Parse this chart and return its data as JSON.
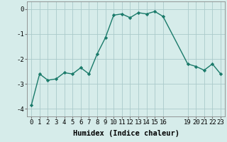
{
  "x": [
    0,
    1,
    2,
    3,
    4,
    5,
    6,
    7,
    8,
    9,
    10,
    11,
    12,
    13,
    14,
    15,
    16,
    19,
    20,
    21,
    22,
    23
  ],
  "y": [
    -3.85,
    -2.6,
    -2.85,
    -2.8,
    -2.55,
    -2.6,
    -2.35,
    -2.6,
    -1.8,
    -1.15,
    -0.25,
    -0.2,
    -0.35,
    -0.15,
    -0.2,
    -0.1,
    -0.3,
    -2.2,
    -2.3,
    -2.45,
    -2.2,
    -2.6
  ],
  "title": "",
  "xlabel": "Humidex (Indice chaleur)",
  "ylabel": "",
  "xlim": [
    -0.5,
    23.5
  ],
  "ylim": [
    -4.3,
    0.3
  ],
  "xticks": [
    0,
    1,
    2,
    3,
    4,
    5,
    6,
    7,
    8,
    9,
    10,
    11,
    12,
    13,
    14,
    15,
    16,
    19,
    20,
    21,
    22,
    23
  ],
  "yticks": [
    0,
    -1,
    -2,
    -3,
    -4
  ],
  "line_color": "#1a7a6a",
  "marker": "D",
  "marker_size": 2.2,
  "bg_color": "#d6ecea",
  "grid_color": "#aacaca",
  "line_width": 1.0,
  "xlabel_fontsize": 7.5,
  "tick_fontsize": 6.5
}
